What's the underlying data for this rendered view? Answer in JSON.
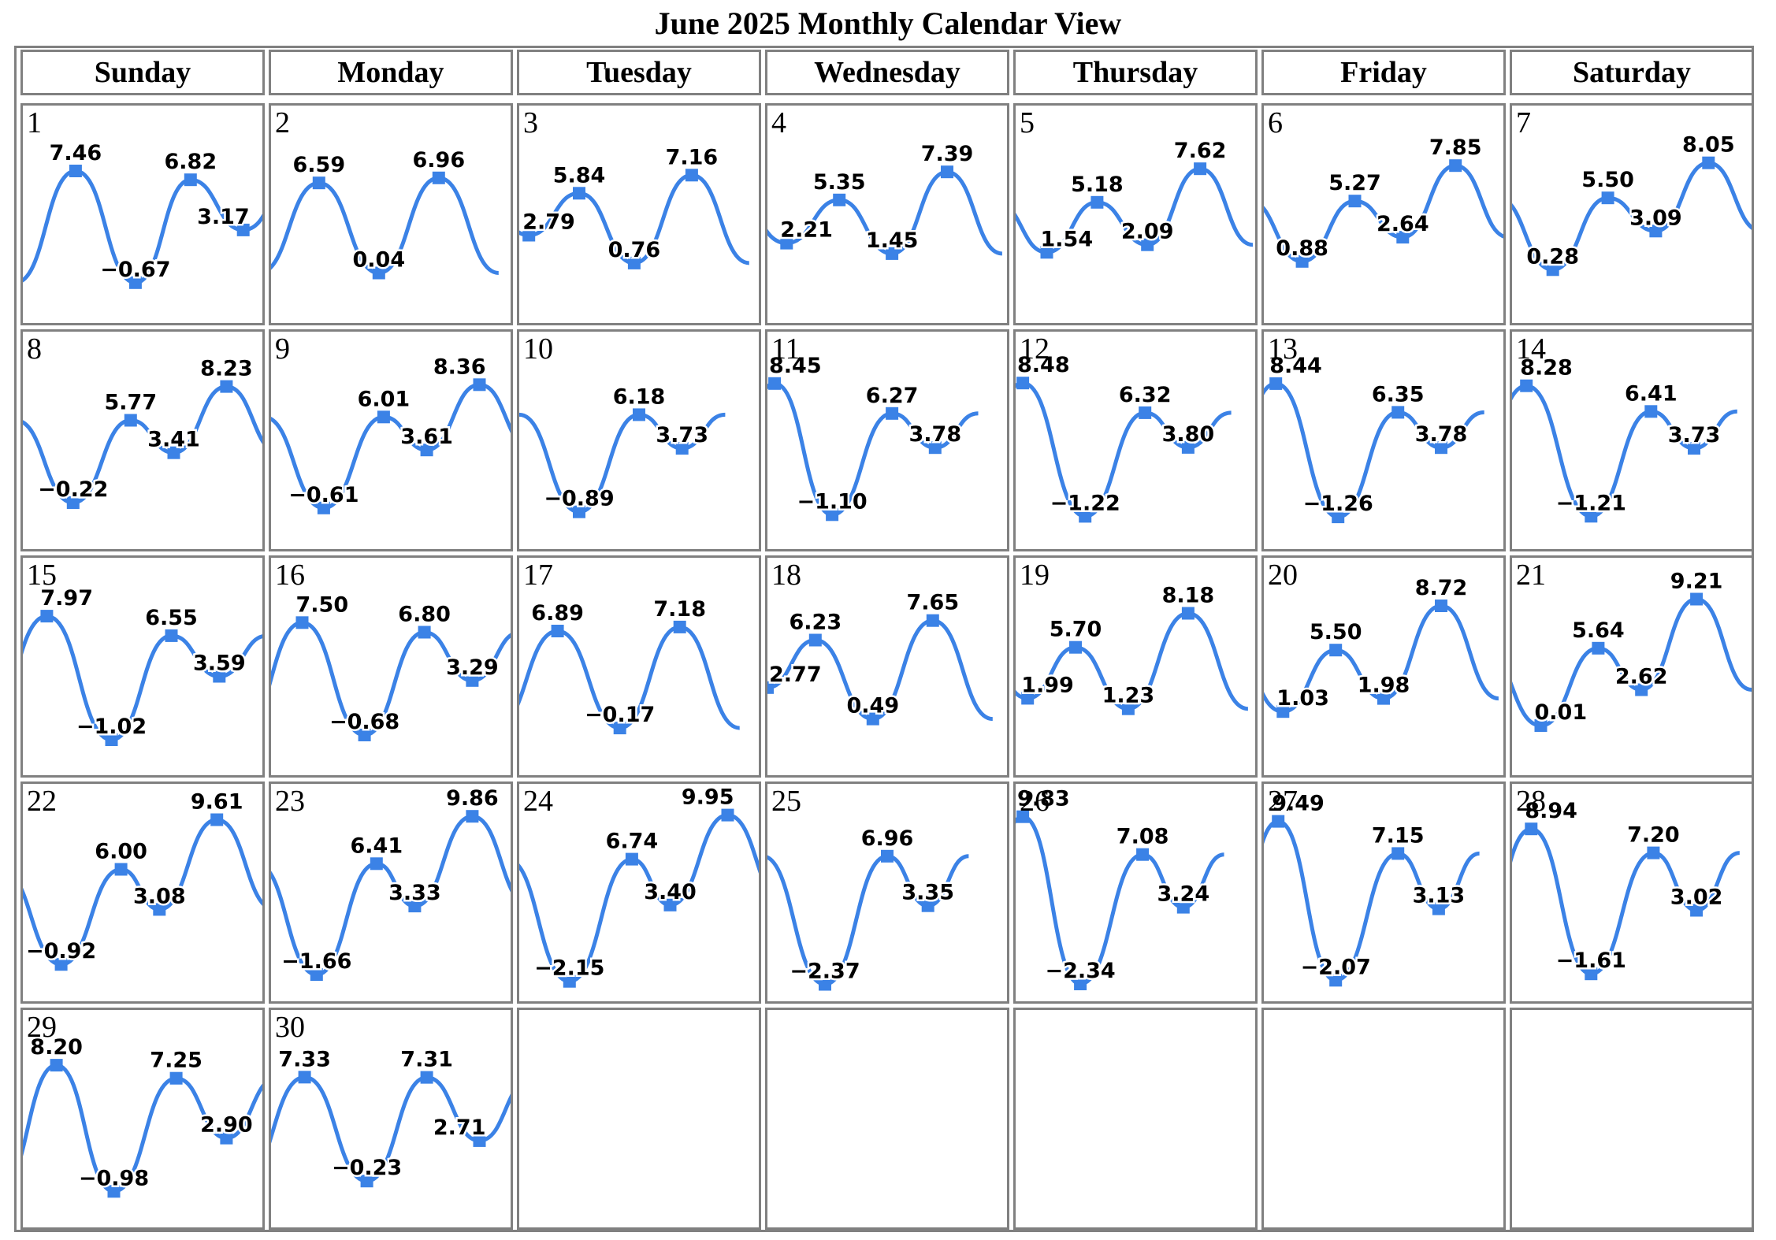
{
  "title": "June 2025 Monthly Calendar View",
  "weekdays": [
    "Sunday",
    "Monday",
    "Tuesday",
    "Wednesday",
    "Thursday",
    "Friday",
    "Saturday"
  ],
  "colors": {
    "line": "#3b82e6",
    "marker": "#3b82e6",
    "grid": "#808080"
  },
  "chart_data": {
    "type": "line",
    "title": "June 2025 Monthly Calendar View",
    "month": "June 2025",
    "first_weekday": "Sunday",
    "ylim": [
      -2.8,
      10.5
    ],
    "days": [
      {
        "date": 1,
        "extrema": [
          {
            "x": 0.22,
            "y": 7.46
          },
          {
            "x": 0.47,
            "y": -0.67
          },
          {
            "x": 0.7,
            "y": 6.82
          },
          {
            "x": 0.92,
            "y": 3.17
          }
        ]
      },
      {
        "date": 2,
        "extrema": [
          {
            "x": 0.2,
            "y": 6.59
          },
          {
            "x": 0.45,
            "y": 0.04
          },
          {
            "x": 0.7,
            "y": 6.96
          }
        ]
      },
      {
        "date": 3,
        "extrema": [
          {
            "x": 0.04,
            "y": 2.79
          },
          {
            "x": 0.25,
            "y": 5.84
          },
          {
            "x": 0.48,
            "y": 0.76
          },
          {
            "x": 0.72,
            "y": 7.16
          }
        ]
      },
      {
        "date": 4,
        "extrema": [
          {
            "x": 0.08,
            "y": 2.21
          },
          {
            "x": 0.3,
            "y": 5.35
          },
          {
            "x": 0.52,
            "y": 1.45
          },
          {
            "x": 0.75,
            "y": 7.39
          }
        ]
      },
      {
        "date": 5,
        "extrema": [
          {
            "x": 0.13,
            "y": 1.54
          },
          {
            "x": 0.34,
            "y": 5.18
          },
          {
            "x": 0.55,
            "y": 2.09
          },
          {
            "x": 0.77,
            "y": 7.62
          }
        ]
      },
      {
        "date": 6,
        "extrema": [
          {
            "x": 0.16,
            "y": 0.88
          },
          {
            "x": 0.38,
            "y": 5.27
          },
          {
            "x": 0.58,
            "y": 2.64
          },
          {
            "x": 0.8,
            "y": 7.85
          }
        ]
      },
      {
        "date": 7,
        "extrema": [
          {
            "x": 0.17,
            "y": 0.28
          },
          {
            "x": 0.4,
            "y": 5.5
          },
          {
            "x": 0.6,
            "y": 3.09
          },
          {
            "x": 0.82,
            "y": 8.05
          }
        ]
      },
      {
        "date": 8,
        "extrema": [
          {
            "x": 0.21,
            "y": -0.22
          },
          {
            "x": 0.45,
            "y": 5.77
          },
          {
            "x": 0.63,
            "y": 3.41
          },
          {
            "x": 0.85,
            "y": 8.23
          }
        ]
      },
      {
        "date": 9,
        "extrema": [
          {
            "x": 0.22,
            "y": -0.61
          },
          {
            "x": 0.47,
            "y": 6.01
          },
          {
            "x": 0.65,
            "y": 3.61
          },
          {
            "x": 0.87,
            "y": 8.36
          }
        ]
      },
      {
        "date": 10,
        "extrema": [
          {
            "x": 0.25,
            "y": -0.89
          },
          {
            "x": 0.5,
            "y": 6.18
          },
          {
            "x": 0.68,
            "y": 3.73
          }
        ]
      },
      {
        "date": 11,
        "extrema": [
          {
            "x": 0.03,
            "y": 8.45
          },
          {
            "x": 0.27,
            "y": -1.1
          },
          {
            "x": 0.52,
            "y": 6.27
          },
          {
            "x": 0.7,
            "y": 3.78
          }
        ]
      },
      {
        "date": 12,
        "extrema": [
          {
            "x": 0.03,
            "y": 8.48
          },
          {
            "x": 0.29,
            "y": -1.22
          },
          {
            "x": 0.54,
            "y": 6.32
          },
          {
            "x": 0.72,
            "y": 3.8
          }
        ]
      },
      {
        "date": 13,
        "extrema": [
          {
            "x": 0.05,
            "y": 8.44
          },
          {
            "x": 0.31,
            "y": -1.26
          },
          {
            "x": 0.56,
            "y": 6.35
          },
          {
            "x": 0.74,
            "y": 3.78
          }
        ]
      },
      {
        "date": 14,
        "extrema": [
          {
            "x": 0.06,
            "y": 8.28
          },
          {
            "x": 0.33,
            "y": -1.21
          },
          {
            "x": 0.58,
            "y": 6.41
          },
          {
            "x": 0.76,
            "y": 3.73
          }
        ]
      },
      {
        "date": 15,
        "extrema": [
          {
            "x": 0.1,
            "y": 7.97
          },
          {
            "x": 0.37,
            "y": -1.02
          },
          {
            "x": 0.62,
            "y": 6.55
          },
          {
            "x": 0.82,
            "y": 3.59
          }
        ]
      },
      {
        "date": 16,
        "extrema": [
          {
            "x": 0.13,
            "y": 7.5
          },
          {
            "x": 0.39,
            "y": -0.68
          },
          {
            "x": 0.64,
            "y": 6.8
          },
          {
            "x": 0.84,
            "y": 3.29
          }
        ]
      },
      {
        "date": 17,
        "extrema": [
          {
            "x": 0.16,
            "y": 6.89
          },
          {
            "x": 0.42,
            "y": -0.17
          },
          {
            "x": 0.67,
            "y": 7.18
          }
        ]
      },
      {
        "date": 18,
        "extrema": [
          {
            "x": 0.0,
            "y": 2.77
          },
          {
            "x": 0.2,
            "y": 6.23
          },
          {
            "x": 0.44,
            "y": 0.49
          },
          {
            "x": 0.69,
            "y": 7.65
          }
        ]
      },
      {
        "date": 19,
        "extrema": [
          {
            "x": 0.05,
            "y": 1.99
          },
          {
            "x": 0.25,
            "y": 5.7
          },
          {
            "x": 0.47,
            "y": 1.23
          },
          {
            "x": 0.72,
            "y": 8.18
          }
        ]
      },
      {
        "date": 20,
        "extrema": [
          {
            "x": 0.08,
            "y": 1.03
          },
          {
            "x": 0.3,
            "y": 5.5
          },
          {
            "x": 0.5,
            "y": 1.98
          },
          {
            "x": 0.74,
            "y": 8.72
          }
        ]
      },
      {
        "date": 21,
        "extrema": [
          {
            "x": 0.12,
            "y": 0.01
          },
          {
            "x": 0.36,
            "y": 5.64
          },
          {
            "x": 0.54,
            "y": 2.62
          },
          {
            "x": 0.77,
            "y": 9.21
          }
        ]
      },
      {
        "date": 22,
        "extrema": [
          {
            "x": 0.16,
            "y": -0.92
          },
          {
            "x": 0.41,
            "y": 6.0
          },
          {
            "x": 0.57,
            "y": 3.08
          },
          {
            "x": 0.81,
            "y": 9.61
          }
        ]
      },
      {
        "date": 23,
        "extrema": [
          {
            "x": 0.19,
            "y": -1.66
          },
          {
            "x": 0.44,
            "y": 6.41
          },
          {
            "x": 0.6,
            "y": 3.33
          },
          {
            "x": 0.84,
            "y": 9.86
          }
        ]
      },
      {
        "date": 24,
        "extrema": [
          {
            "x": 0.21,
            "y": -2.15
          },
          {
            "x": 0.47,
            "y": 6.74
          },
          {
            "x": 0.63,
            "y": 3.4
          },
          {
            "x": 0.87,
            "y": 9.95
          }
        ]
      },
      {
        "date": 25,
        "extrema": [
          {
            "x": 0.24,
            "y": -2.37
          },
          {
            "x": 0.5,
            "y": 6.96
          },
          {
            "x": 0.67,
            "y": 3.35
          }
        ]
      },
      {
        "date": 26,
        "extrema": [
          {
            "x": 0.03,
            "y": 9.83
          },
          {
            "x": 0.27,
            "y": -2.34
          },
          {
            "x": 0.53,
            "y": 7.08
          },
          {
            "x": 0.7,
            "y": 3.24
          }
        ]
      },
      {
        "date": 27,
        "extrema": [
          {
            "x": 0.06,
            "y": 9.49
          },
          {
            "x": 0.3,
            "y": -2.07
          },
          {
            "x": 0.56,
            "y": 7.15
          },
          {
            "x": 0.73,
            "y": 3.13
          }
        ]
      },
      {
        "date": 28,
        "extrema": [
          {
            "x": 0.08,
            "y": 8.94
          },
          {
            "x": 0.33,
            "y": -1.61
          },
          {
            "x": 0.59,
            "y": 7.2
          },
          {
            "x": 0.77,
            "y": 3.02
          }
        ]
      },
      {
        "date": 29,
        "extrema": [
          {
            "x": 0.14,
            "y": 8.2
          },
          {
            "x": 0.38,
            "y": -0.98
          },
          {
            "x": 0.64,
            "y": 7.25
          },
          {
            "x": 0.85,
            "y": 2.9
          }
        ]
      },
      {
        "date": 30,
        "extrema": [
          {
            "x": 0.14,
            "y": 7.33
          },
          {
            "x": 0.4,
            "y": -0.23
          },
          {
            "x": 0.65,
            "y": 7.31
          },
          {
            "x": 0.87,
            "y": 2.71
          }
        ]
      }
    ]
  }
}
